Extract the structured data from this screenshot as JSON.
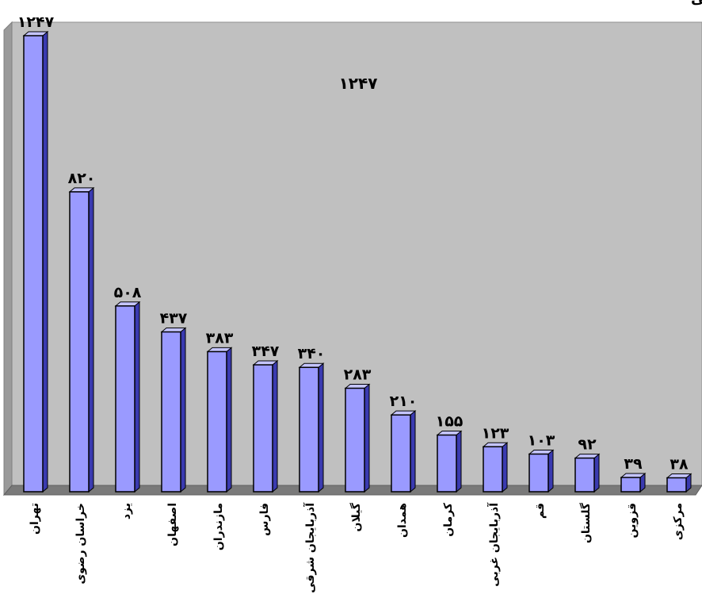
{
  "chart_data": {
    "type": "bar",
    "title": "نمودار مقایسه تعداد اسناد تنظیمی در کشور بین دفاتر اسناد رسمی",
    "categories": [
      "تهران",
      "خراسان رضوی",
      "یزد",
      "اصفهان",
      "مازندران",
      "فارس",
      "آذربایجان شرقی",
      "گیلان",
      "همدان",
      "کرمان",
      "آذربایجان غربی",
      "قم",
      "گلستان",
      "قزوین",
      "مرکزی"
    ],
    "values": [
      1247,
      820,
      508,
      437,
      383,
      347,
      340,
      283,
      210,
      155,
      123,
      103,
      92,
      39,
      38
    ],
    "value_labels": [
      "۱۲۴۷",
      "۸۲۰",
      "۵۰۸",
      "۴۳۷",
      "۳۸۳",
      "۳۴۷",
      "۳۴۰",
      "۲۸۳",
      "۲۱۰",
      "۱۵۵",
      "۱۲۳",
      "۱۰۳",
      "۹۲",
      "۳۹",
      "۳۸"
    ],
    "annotation": "۱۲۴۷",
    "ylim": [
      0,
      1247
    ],
    "xlabel": "",
    "ylabel": "",
    "grid": false,
    "legend": "none",
    "colors": {
      "bar_front": "#9a9aff",
      "bar_side": "#3a3ab0",
      "bar_top": "#c4c4ff",
      "wall": "#c0c0c0",
      "floor": "#7a7a7a",
      "border": "#000000"
    }
  }
}
